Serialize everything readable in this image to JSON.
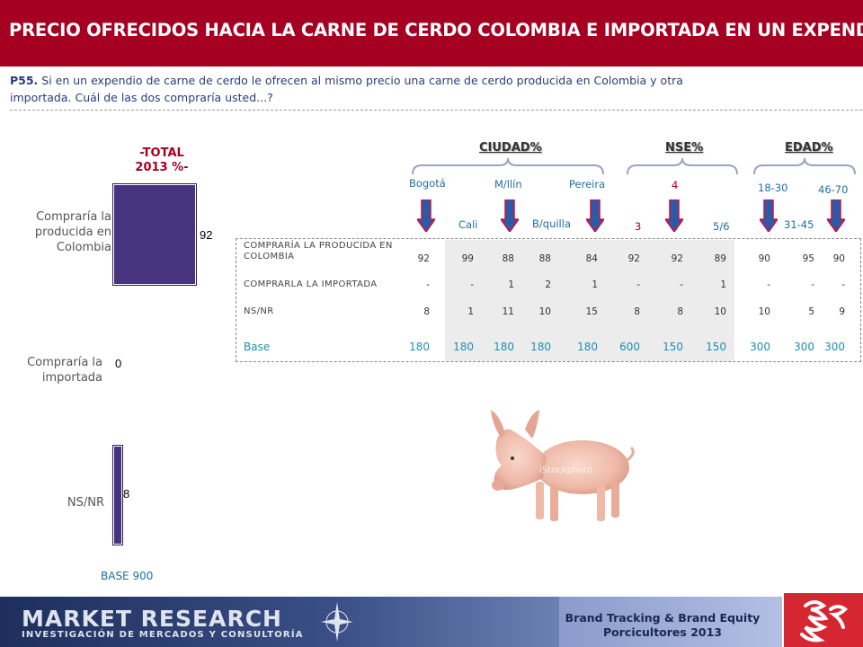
{
  "title": "PRECIO OFRECIDOS HACIA LA CARNE DE CERDO COLOMBIA E IMPORTADA EN UN EXPENDIO",
  "question": {
    "code": "P55.",
    "text": " Si en un expendio de carne de cerdo  le ofrecen al mismo precio  una carne de cerdo producida en Colombia y otra importada.  Cuál de las dos compraría usted...?"
  },
  "total": {
    "label_line1": "-TOTAL",
    "label_line2": "2013 %-",
    "rows": [
      {
        "label_1": "Compraría la",
        "label_2": "producida en",
        "label_3": "Colombia",
        "value": "92",
        "pct": 92
      },
      {
        "label_1": "Compraría la",
        "label_2": "importada",
        "value": "0",
        "pct": 0
      },
      {
        "label_1": "NS/NR",
        "value": "8",
        "pct": 8
      }
    ],
    "base": "BASE 900"
  },
  "groups": {
    "ciudad": "CIUDAD%",
    "nse": "NSE%",
    "edad": "EDAD%"
  },
  "columns": {
    "bogota": "Bogotá",
    "cali": "Cali",
    "medellin": "M/llín",
    "barranquilla": "B/quilla",
    "pereira": "Pereira",
    "nse3": "3",
    "nse4": "4",
    "nse56": "5/6",
    "e1830": "18-30",
    "e3145": "31-45",
    "e4670": "46-70"
  },
  "table": {
    "rows": [
      {
        "name_1": "COMPRARÍA LA PRODUCIDA EN",
        "name_2": "COLOMBIA",
        "values": [
          "92",
          "99",
          "88",
          "88",
          "84",
          "92",
          "92",
          "89",
          "90",
          "95",
          "90"
        ]
      },
      {
        "name_1": "COMPRARLA LA IMPORTADA",
        "values": [
          "-",
          "-",
          "1",
          "2",
          "1",
          "-",
          "-",
          "1",
          "-",
          "-",
          "-"
        ]
      },
      {
        "name_1": "NS/NR",
        "values": [
          "8",
          "1",
          "11",
          "10",
          "15",
          "8",
          "8",
          "10",
          "10",
          "5",
          "9"
        ]
      }
    ],
    "base": {
      "name": "Base",
      "values": [
        "180",
        "180",
        "180",
        "180",
        "180",
        "600",
        "150",
        "150",
        "300",
        "300",
        "300"
      ]
    }
  },
  "image": {
    "watermark": "iStockphoto"
  },
  "footer": {
    "brand_main": "MARKET RESEARCH",
    "brand_sub": "INVESTIGACIÓN DE MERCADOS Y CONSULTORÍA",
    "line1": "Brand Tracking & Brand Equity",
    "line2": "Porcicultores 2013"
  },
  "colors": {
    "title_bg": "#a50021",
    "bar": "#47337e",
    "accent_blue": "#1f6fa0",
    "arrow_red": "#d0103a",
    "arrow_blue": "#2d5aa6"
  }
}
